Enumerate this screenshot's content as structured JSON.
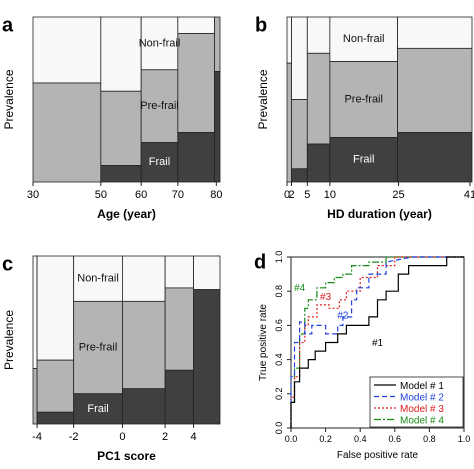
{
  "colors": {
    "nonfrail": "#f8f8f8",
    "prefrail": "#b4b4b4",
    "frail": "#404040",
    "model1": "#000000",
    "model2": "#1f3fe0",
    "model3": "#e01b1b",
    "model4": "#1a8a1a"
  },
  "chart_data": [
    {
      "panel": "a",
      "type": "mosaic",
      "xlabel": "Age (year)",
      "ylabel": "Prevalence",
      "xlim": [
        30,
        81
      ],
      "ylim": [
        0,
        1
      ],
      "x_ticks": [
        30,
        50,
        60,
        70,
        80
      ],
      "region_labels": {
        "nonfrail": "Non-frail",
        "prefrail": "Pre-frail",
        "frail": "Frail"
      },
      "label_bin": 2,
      "bins": [
        {
          "x0": 30,
          "x1": 48.5,
          "frail": 0.0,
          "prefrail": 0.6
        },
        {
          "x0": 48.5,
          "x1": 59.5,
          "frail": 0.1,
          "prefrail": 0.55
        },
        {
          "x0": 59.5,
          "x1": 69.5,
          "frail": 0.24,
          "prefrail": 0.68
        },
        {
          "x0": 69.5,
          "x1": 79.5,
          "frail": 0.3,
          "prefrail": 0.9
        },
        {
          "x0": 79.5,
          "x1": 81,
          "frail": 0.67,
          "prefrail": 1.0
        }
      ]
    },
    {
      "panel": "b",
      "type": "mosaic",
      "xlabel": "HD duration (year)",
      "ylabel": "Prevalence",
      "xlim": [
        0,
        41
      ],
      "ylim": [
        0,
        1
      ],
      "x_ticks": [
        "0",
        "2",
        "5",
        "10",
        "25",
        "41"
      ],
      "region_labels": {
        "nonfrail": "Non-frail",
        "prefrail": "Pre-frail",
        "frail": "Frail"
      },
      "label_bin": 3,
      "bins": [
        {
          "x0": 0,
          "x1": 1,
          "frail": 0.0,
          "prefrail": 0.72
        },
        {
          "x0": 1,
          "x1": 4.5,
          "frail": 0.08,
          "prefrail": 0.5
        },
        {
          "x0": 4.5,
          "x1": 9.5,
          "frail": 0.23,
          "prefrail": 0.78
        },
        {
          "x0": 9.5,
          "x1": 24.5,
          "frail": 0.27,
          "prefrail": 0.73
        },
        {
          "x0": 24.5,
          "x1": 41,
          "frail": 0.3,
          "prefrail": 0.81
        }
      ]
    },
    {
      "panel": "c",
      "type": "mosaic",
      "xlabel": "PC1 score",
      "ylabel": "Prevalence",
      "xlim": [
        -4.5,
        4.7
      ],
      "ylim": [
        0,
        1
      ],
      "x_ticks": [
        -4,
        -2,
        0,
        2,
        4
      ],
      "region_labels": {
        "nonfrail": "Non-frail",
        "prefrail": "Pre-frail",
        "frail": "Frail"
      },
      "label_bin": 2,
      "bins": [
        {
          "x0": -4.5,
          "x1": -4.3,
          "frail": 0.0,
          "prefrail": 0.33
        },
        {
          "x0": -4.3,
          "x1": -2.5,
          "frail": 0.07,
          "prefrail": 0.38
        },
        {
          "x0": -2.5,
          "x1": -0.1,
          "frail": 0.18,
          "prefrail": 0.73
        },
        {
          "x0": -0.1,
          "x1": 2.0,
          "frail": 0.21,
          "prefrail": 0.73
        },
        {
          "x0": 2.0,
          "x1": 3.4,
          "frail": 0.32,
          "prefrail": 0.81
        },
        {
          "x0": 3.4,
          "x1": 4.7,
          "frail": 0.8,
          "prefrail": 0.8
        }
      ]
    },
    {
      "panel": "d",
      "type": "line",
      "xlabel": "False positive rate",
      "ylabel": "True positive rate",
      "xlim": [
        0,
        1
      ],
      "ylim": [
        0,
        1
      ],
      "x_ticks": [
        "0.0",
        "0.2",
        "0.4",
        "0.6",
        "0.8",
        "1.0"
      ],
      "y_ticks": [
        "0.0",
        "0.2",
        "0.4",
        "0.6",
        "0.8",
        "1.0"
      ],
      "legend_position": "bottom-right",
      "series": [
        {
          "name": "Model # 1",
          "curve_label": "#1",
          "dash": "",
          "x": [
            0,
            0,
            0.02,
            0.02,
            0.05,
            0.05,
            0.1,
            0.1,
            0.14,
            0.14,
            0.2,
            0.2,
            0.27,
            0.27,
            0.32,
            0.32,
            0.4,
            0.45,
            0.45,
            0.5,
            0.5,
            0.55,
            0.55,
            0.62,
            0.62,
            0.68,
            0.68,
            0.9,
            0.9,
            1.0
          ],
          "y": [
            0,
            0.15,
            0.15,
            0.27,
            0.27,
            0.35,
            0.35,
            0.4,
            0.4,
            0.45,
            0.45,
            0.5,
            0.5,
            0.55,
            0.55,
            0.6,
            0.6,
            0.6,
            0.65,
            0.65,
            0.75,
            0.75,
            0.8,
            0.8,
            0.9,
            0.9,
            0.95,
            0.95,
            1.0,
            1.0
          ]
        },
        {
          "name": "Model # 2",
          "curve_label": "#2",
          "dash": "5,3",
          "x": [
            0,
            0,
            0.02,
            0.02,
            0.05,
            0.05,
            0.08,
            0.08,
            0.12,
            0.12,
            0.2,
            0.2,
            0.27,
            0.27,
            0.3,
            0.3,
            0.35,
            0.35,
            0.38,
            0.38,
            0.45,
            0.45,
            0.55,
            0.55,
            0.7,
            1.0
          ],
          "y": [
            0,
            0.3,
            0.3,
            0.5,
            0.5,
            0.62,
            0.62,
            0.55,
            0.55,
            0.6,
            0.6,
            0.55,
            0.55,
            0.6,
            0.6,
            0.65,
            0.65,
            0.75,
            0.75,
            0.82,
            0.82,
            0.9,
            0.9,
            0.97,
            1.0,
            1.0
          ]
        },
        {
          "name": "Model # 3",
          "curve_label": "#3",
          "dash": "2,2",
          "x": [
            0,
            0,
            0.02,
            0.02,
            0.05,
            0.05,
            0.08,
            0.08,
            0.1,
            0.1,
            0.15,
            0.15,
            0.22,
            0.22,
            0.28,
            0.28,
            0.32,
            0.32,
            0.4,
            0.4,
            0.5,
            0.5,
            0.6,
            0.6,
            1.0
          ],
          "y": [
            0,
            0.18,
            0.18,
            0.3,
            0.3,
            0.5,
            0.5,
            0.6,
            0.6,
            0.65,
            0.65,
            0.72,
            0.72,
            0.7,
            0.7,
            0.75,
            0.75,
            0.8,
            0.8,
            0.88,
            0.88,
            0.95,
            0.95,
            1.0,
            1.0
          ]
        },
        {
          "name": "Model # 4",
          "curve_label": "#4",
          "dash": "7,2,2,2",
          "x": [
            0,
            0,
            0.02,
            0.02,
            0.05,
            0.05,
            0.08,
            0.08,
            0.1,
            0.1,
            0.15,
            0.15,
            0.2,
            0.2,
            0.25,
            0.25,
            0.3,
            0.3,
            0.35,
            0.35,
            0.45,
            0.45,
            0.55,
            0.55,
            1.0
          ],
          "y": [
            0,
            0.15,
            0.15,
            0.35,
            0.35,
            0.55,
            0.55,
            0.7,
            0.7,
            0.75,
            0.75,
            0.82,
            0.82,
            0.85,
            0.85,
            0.88,
            0.88,
            0.9,
            0.9,
            0.95,
            0.95,
            0.97,
            0.97,
            1.0,
            1.0
          ]
        }
      ]
    }
  ]
}
